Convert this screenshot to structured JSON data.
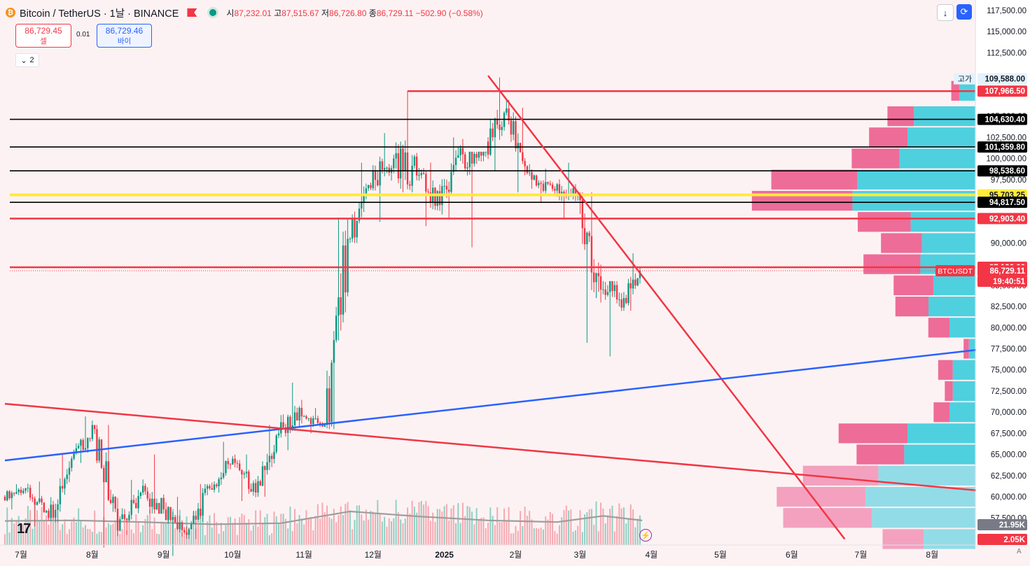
{
  "header": {
    "coin_badge": "₿",
    "title": "Bitcoin / TetherUS · 1날 · BINANCE",
    "ohlc": {
      "o_label": "시",
      "o": "87,232.01",
      "h_label": "고",
      "h": "87,515.67",
      "l_label": "저",
      "l": "86,726.80",
      "c_label": "종",
      "c": "86,729.11",
      "change": "−502.90 (−0.58%)"
    }
  },
  "trade": {
    "sell_price": "86,729.45",
    "sell_label": "셀",
    "spread": "0.01",
    "buy_price": "86,729.46",
    "buy_label": "바이"
  },
  "indicators": {
    "collapse_icon": "chevron-down-icon",
    "count": "2"
  },
  "toolbar": {
    "down_icon": "arrow-down-icon",
    "auto_icon": "refresh-icon"
  },
  "logo": "17",
  "price_axis": {
    "ticks": [
      "117,500.00",
      "115,000.00",
      "112,500.00",
      "109,588.00",
      "105,000.00",
      "102,500.00",
      "100,000.00",
      "97,500.00",
      "90,000.00",
      "85,000.00",
      "82,500.00",
      "80,000.00",
      "77,500.00",
      "75,000.00",
      "72,500.00",
      "70,000.00",
      "67,500.00",
      "65,000.00",
      "62,500.00",
      "60,000.00",
      "57,500.00",
      "55,000.00"
    ],
    "high_label": "고가",
    "labels": [
      {
        "text": "109,588.00",
        "bg": "#e3f2fd",
        "fg": "#131722"
      },
      {
        "text": "107,966.50",
        "bg": "#f23645",
        "fg": "#ffffff"
      },
      {
        "text": "104,630.40",
        "bg": "#000000",
        "fg": "#ffffff"
      },
      {
        "text": "101,359.80",
        "bg": "#000000",
        "fg": "#ffffff"
      },
      {
        "text": "98,538.60",
        "bg": "#000000",
        "fg": "#ffffff"
      },
      {
        "text": "95,703.25",
        "bg": "#ffeb3b",
        "fg": "#131722"
      },
      {
        "text": "94,817.50",
        "bg": "#000000",
        "fg": "#ffffff"
      },
      {
        "text": "92,903.40",
        "bg": "#f23645",
        "fg": "#ffffff"
      },
      {
        "text": "87,136.00",
        "bg": "#f23645",
        "fg": "#ffffff"
      },
      {
        "text": "86,729.11",
        "bg": "#f23645",
        "fg": "#ffffff"
      },
      {
        "text": "19:40:51",
        "bg": "#f23645",
        "fg": "#ffffff"
      },
      {
        "text": "21.95K",
        "bg": "#787b86",
        "fg": "#ffffff"
      },
      {
        "text": "2.05K",
        "bg": "#f23645",
        "fg": "#ffffff"
      }
    ],
    "symbol_tag": "BTCUSDT"
  },
  "time_axis": [
    "7월",
    "8월",
    "9월",
    "10월",
    "11월",
    "12월",
    "2025",
    "2월",
    "3월",
    "4월",
    "5월",
    "6월",
    "7월",
    "8월"
  ],
  "scale_mode": "A",
  "colors": {
    "up": "#089981",
    "down": "#f23645",
    "blue_line": "#2962ff",
    "red_line": "#f23645",
    "yellow_line": "#ffeb3b",
    "vp_up": "#26c6da",
    "vp_down": "#ec407a"
  },
  "chart_data": {
    "type": "candlestick",
    "y_unit": "USDT",
    "ylim": [
      55000,
      118000
    ],
    "x_range": [
      "2024-06-24",
      "2025-08-31"
    ],
    "ohlc_series": [
      {
        "date": "2024-06-24",
        "v": [
          60000,
          61500,
          58500,
          61000
        ]
      },
      {
        "date": "2024-07-04",
        "v": [
          61000,
          61800,
          56500,
          57500
        ]
      },
      {
        "date": "2024-07-14",
        "v": [
          57500,
          65000,
          57000,
          64500
        ]
      },
      {
        "date": "2024-07-24",
        "v": [
          64500,
          69500,
          64000,
          68000
        ]
      },
      {
        "date": "2024-08-03",
        "v": [
          68000,
          68500,
          54000,
          56000
        ]
      },
      {
        "date": "2024-08-13",
        "v": [
          56000,
          62000,
          55500,
          60500
        ]
      },
      {
        "date": "2024-08-23",
        "v": [
          60500,
          65000,
          58000,
          58500
        ]
      },
      {
        "date": "2024-09-02",
        "v": [
          58500,
          60000,
          53000,
          55500
        ]
      },
      {
        "date": "2024-09-12",
        "v": [
          55500,
          61500,
          55000,
          61000
        ]
      },
      {
        "date": "2024-09-22",
        "v": [
          61000,
          66500,
          60500,
          64500
        ]
      },
      {
        "date": "2024-10-02",
        "v": [
          64500,
          65000,
          59500,
          60500
        ]
      },
      {
        "date": "2024-10-12",
        "v": [
          60500,
          68500,
          60000,
          67500
        ]
      },
      {
        "date": "2024-10-22",
        "v": [
          67500,
          73500,
          65500,
          69500
        ]
      },
      {
        "date": "2024-11-01",
        "v": [
          69500,
          70500,
          67500,
          68500
        ]
      },
      {
        "date": "2024-11-11",
        "v": [
          68500,
          93000,
          68000,
          90500
        ]
      },
      {
        "date": "2024-11-21",
        "v": [
          90500,
          99500,
          90000,
          96500
        ]
      },
      {
        "date": "2024-12-01",
        "v": [
          96500,
          103000,
          92500,
          100000
        ]
      },
      {
        "date": "2024-12-11",
        "v": [
          100000,
          108000,
          96000,
          98000
        ]
      },
      {
        "date": "2024-12-21",
        "v": [
          98000,
          99500,
          92000,
          94500
        ]
      },
      {
        "date": "2024-12-31",
        "v": [
          94500,
          102500,
          93000,
          100500
        ]
      },
      {
        "date": "2025-01-10",
        "v": [
          100500,
          100800,
          89500,
          102000
        ]
      },
      {
        "date": "2025-01-20",
        "v": [
          102000,
          109588,
          98500,
          104500
        ]
      },
      {
        "date": "2025-01-30",
        "v": [
          104500,
          106000,
          96000,
          97500
        ]
      },
      {
        "date": "2025-02-09",
        "v": [
          97500,
          98800,
          94800,
          96200
        ]
      },
      {
        "date": "2025-02-19",
        "v": [
          96200,
          99500,
          93000,
          95800
        ]
      },
      {
        "date": "2025-03-01",
        "v": [
          95800,
          96000,
          78200,
          84500
        ]
      },
      {
        "date": "2025-03-11",
        "v": [
          84500,
          85500,
          76600,
          83500
        ]
      },
      {
        "date": "2025-03-21",
        "v": [
          83500,
          88800,
          82000,
          86729.11
        ]
      }
    ],
    "volume_series": [
      {
        "date": "2024-06-24",
        "v": 21500
      },
      {
        "date": "2024-07-24",
        "v": 22000
      },
      {
        "date": "2024-08-23",
        "v": 20500
      },
      {
        "date": "2024-09-22",
        "v": 18500
      },
      {
        "date": "2024-10-22",
        "v": 19500
      },
      {
        "date": "2024-11-21",
        "v": 30000
      },
      {
        "date": "2024-12-21",
        "v": 25500
      },
      {
        "date": "2025-01-20",
        "v": 22000
      },
      {
        "date": "2025-02-19",
        "v": 20500
      },
      {
        "date": "2025-03-11",
        "v": 26000
      },
      {
        "date": "2025-03-28",
        "v": 21950
      }
    ],
    "horizontal_levels": [
      {
        "price": 107966.5,
        "color": "#f23645",
        "from": "2024-12-16"
      },
      {
        "price": 104630.4,
        "color": "#000000"
      },
      {
        "price": 101359.8,
        "color": "#000000"
      },
      {
        "price": 98538.6,
        "color": "#000000"
      },
      {
        "price": 95703.25,
        "color": "#ffeb3b"
      },
      {
        "price": 94817.5,
        "color": "#000000"
      },
      {
        "price": 92903.4,
        "color": "#f23645"
      },
      {
        "price": 87136.0,
        "color": "#f23645"
      },
      {
        "price": 86729.11,
        "color": "#f23645",
        "style": "dotted"
      }
    ],
    "trendlines": [
      {
        "color": "#f23645",
        "points": [
          {
            "date": "2025-01-20",
            "price": 109800
          },
          {
            "date": "2025-06-24",
            "price": 55000
          }
        ]
      },
      {
        "color": "#2962ff",
        "points": [
          {
            "date": "2024-06-24",
            "price": 64300
          },
          {
            "date": "2025-08-31",
            "price": 77700
          }
        ]
      },
      {
        "color": "#f23645",
        "points": [
          {
            "date": "2024-06-24",
            "price": 71000
          },
          {
            "date": "2025-08-31",
            "price": 60500
          }
        ]
      }
    ],
    "volume_profile": [
      {
        "price": 108000,
        "up": 0.1,
        "down": 0.06
      },
      {
        "price": 105000,
        "up": 0.38,
        "down": 0.2
      },
      {
        "price": 102500,
        "up": 0.42,
        "down": 0.29
      },
      {
        "price": 100000,
        "up": 0.47,
        "down": 0.36
      },
      {
        "price": 97500,
        "up": 0.73,
        "down": 0.65
      },
      {
        "price": 95000,
        "up": 0.76,
        "down": 0.76
      },
      {
        "price": 92500,
        "up": 0.4,
        "down": 0.4
      },
      {
        "price": 90000,
        "up": 0.33,
        "down": 0.31
      },
      {
        "price": 87500,
        "up": 0.34,
        "down": 0.43
      },
      {
        "price": 85000,
        "up": 0.26,
        "down": 0.3
      },
      {
        "price": 82500,
        "up": 0.29,
        "down": 0.25
      },
      {
        "price": 80000,
        "up": 0.16,
        "down": 0.16
      },
      {
        "price": 77500,
        "up": 0.04,
        "down": 0.04
      },
      {
        "price": 75000,
        "up": 0.14,
        "down": 0.11
      },
      {
        "price": 72500,
        "up": 0.14,
        "down": 0.06
      },
      {
        "price": 70000,
        "up": 0.16,
        "down": 0.12
      },
      {
        "price": 67500,
        "up": 0.42,
        "down": 0.52
      },
      {
        "price": 65000,
        "up": 0.44,
        "down": 0.36
      },
      {
        "price": 62500,
        "up": 0.6,
        "down": 0.57
      },
      {
        "price": 60000,
        "up": 0.68,
        "down": 0.67
      },
      {
        "price": 57500,
        "up": 0.64,
        "down": 0.67
      },
      {
        "price": 55000,
        "up": 0.32,
        "down": 0.31
      }
    ]
  }
}
